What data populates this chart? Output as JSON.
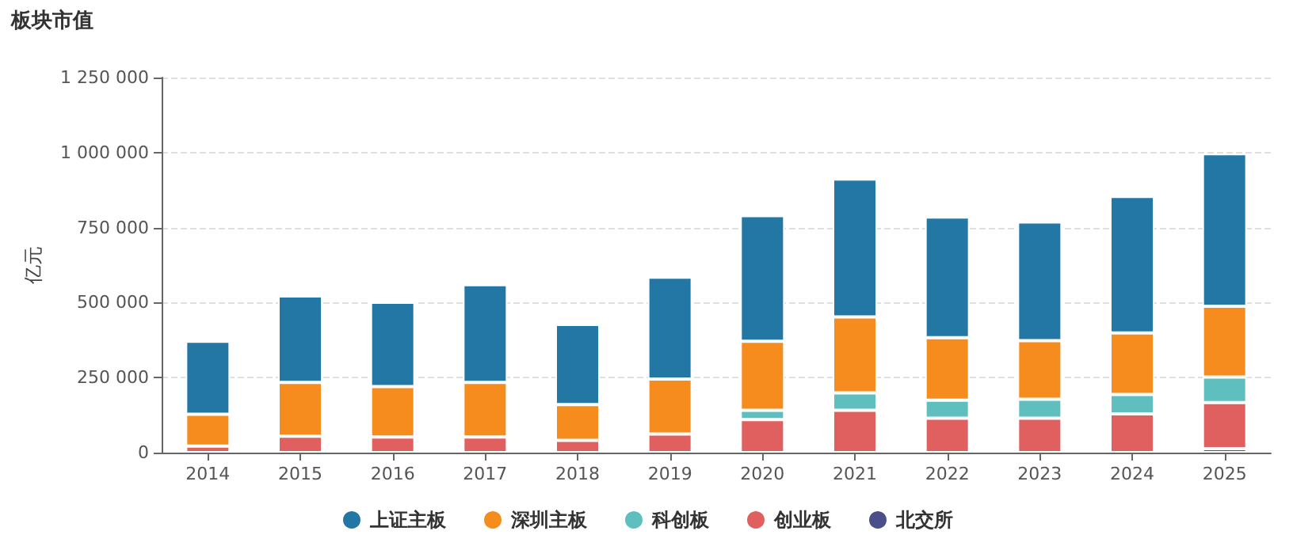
{
  "chart_data": {
    "type": "bar",
    "title": "板块市值",
    "ylabel": "亿元",
    "stacked": true,
    "categories": [
      "2014",
      "2015",
      "2016",
      "2017",
      "2018",
      "2019",
      "2020",
      "2021",
      "2022",
      "2023",
      "2024",
      "2025"
    ],
    "series": [
      {
        "name": "北交所",
        "color": "#4a4f8c",
        "values": [
          null,
          null,
          null,
          null,
          null,
          null,
          null,
          null,
          null,
          null,
          null,
          13000
        ]
      },
      {
        "name": "创业板",
        "color": "#e05f5f",
        "values": [
          22000,
          55000,
          52000,
          52000,
          41000,
          62000,
          110000,
          141000,
          115000,
          115000,
          129000,
          154000
        ]
      },
      {
        "name": "科创板",
        "color": "#5fbfbf",
        "values": [
          null,
          null,
          null,
          null,
          null,
          null,
          31000,
          58000,
          60000,
          63000,
          65000,
          85000
        ]
      },
      {
        "name": "深圳主板",
        "color": "#f68b1e",
        "values": [
          106000,
          179000,
          168000,
          182000,
          119000,
          183000,
          230000,
          253000,
          208000,
          195000,
          205000,
          236000
        ]
      },
      {
        "name": "上证主板",
        "color": "#2377a4",
        "values": [
          243000,
          288000,
          281000,
          326000,
          267000,
          340000,
          419000,
          460000,
          402000,
          396000,
          455000,
          508000
        ]
      }
    ],
    "ylim": [
      0,
      1250000
    ],
    "yticks": [
      0,
      {
        "value": 250000,
        "label": "250 000"
      },
      {
        "value": 500000,
        "label": "500 000"
      },
      {
        "value": 750000,
        "label": "750 000"
      },
      {
        "value": 1000000,
        "label": "1 000 000"
      },
      {
        "value": 1250000,
        "label": "1 250 000"
      }
    ],
    "grid": "y",
    "legend": "bottom"
  }
}
